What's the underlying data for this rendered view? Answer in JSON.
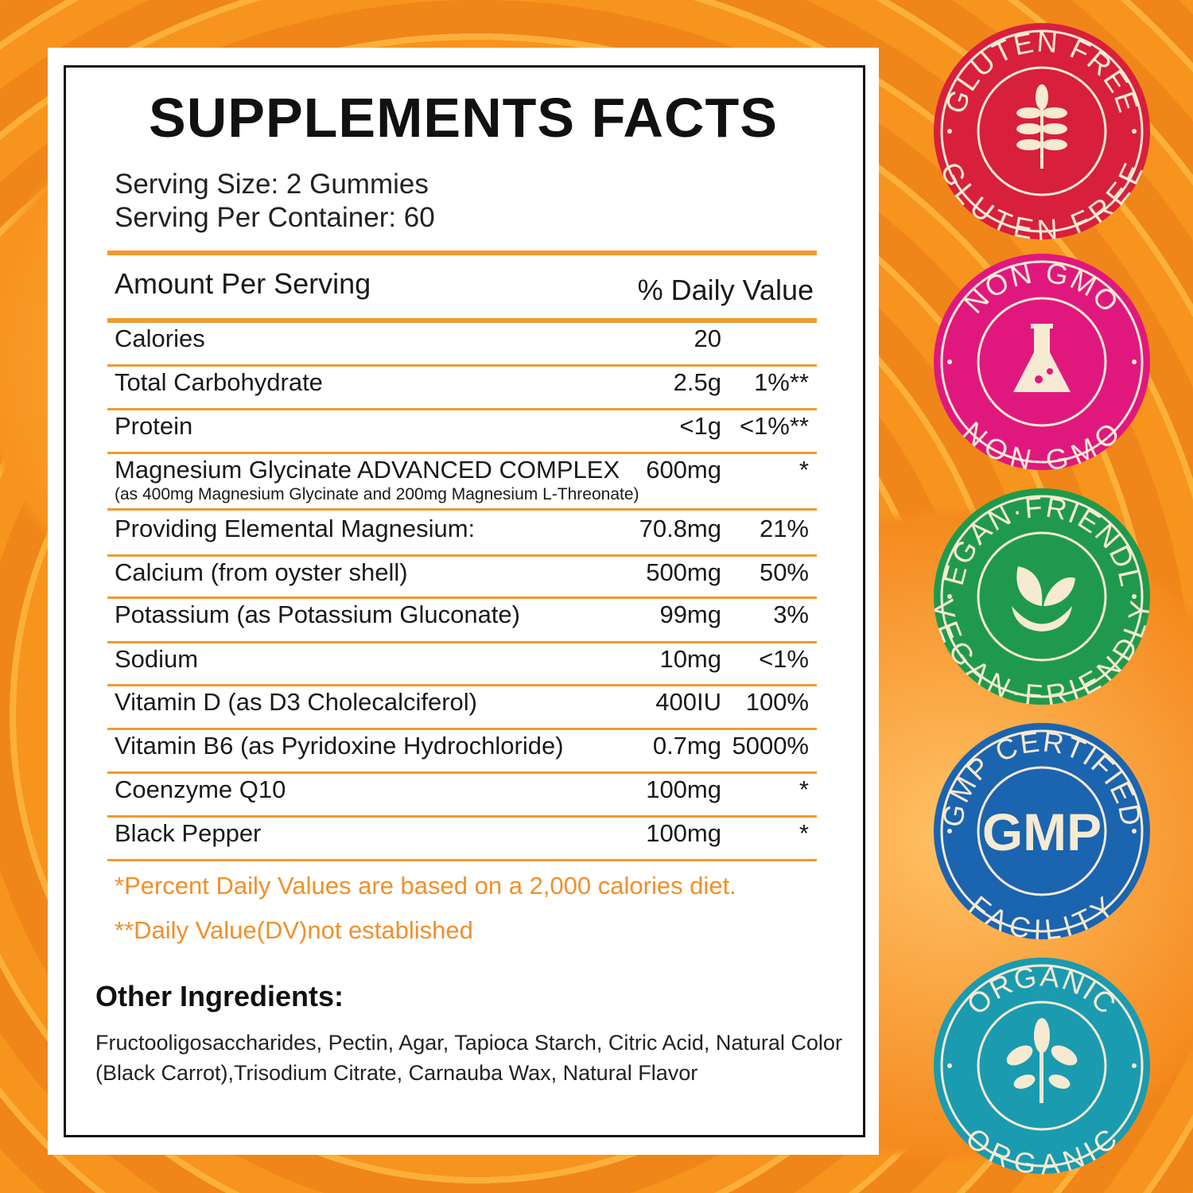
{
  "title": "SUPPLEMENTS FACTS",
  "serving_size": "Serving Size: 2 Gummies",
  "servings_per_container": "Serving Per Container: 60",
  "header": {
    "amount": "Amount Per Serving",
    "dv": "% Daily Value"
  },
  "rows": [
    {
      "name": "Calories",
      "amount": "20",
      "dv": ""
    },
    {
      "name": "Total Carbohydrate",
      "amount": "2.5g",
      "dv": "1%**"
    },
    {
      "name": "Protein",
      "amount": "<1g",
      "dv": "<1%**"
    },
    {
      "name": "Magnesium Glycinate ADVANCED COMPLEX",
      "amount": "600mg",
      "dv": "*",
      "sub": "(as 400mg Magnesium Glycinate and 200mg Magnesium L-Threonate)"
    },
    {
      "name": "Providing Elemental Magnesium:",
      "amount": "70.8mg",
      "dv": "21%"
    },
    {
      "name": "Calcium (from oyster shell)",
      "amount": "500mg",
      "dv": "50%"
    },
    {
      "name": "Potassium (as Potassium Gluconate)",
      "amount": "99mg",
      "dv": "3%"
    },
    {
      "name": "Sodium",
      "amount": "10mg",
      "dv": "<1%"
    },
    {
      "name": "Vitamin D (as D3 Cholecalciferol)",
      "amount": "400IU",
      "dv": "100%"
    },
    {
      "name": "Vitamin B6 (as Pyridoxine Hydrochloride)",
      "amount": "0.7mg",
      "dv": "5000%"
    },
    {
      "name": "Coenzyme Q10",
      "amount": "100mg",
      "dv": "*"
    },
    {
      "name": "Black Pepper",
      "amount": "100mg",
      "dv": "*"
    }
  ],
  "footnotes": [
    "*Percent Daily Values are based on a 2,000 calories diet.",
    "**Daily Value(DV)not established"
  ],
  "other_ingredients": {
    "heading": "Other Ingredients:",
    "text": "Fructooligosaccharides, Pectin, Agar, Tapioca Starch, Citric Acid, Natural Color (Black Carrot),Trisodium Citrate, Carnauba Wax, Natural Flavor"
  },
  "badges": [
    {
      "top": "GLUTEN FREE",
      "bottom": "GLUTEN FREE",
      "icon": "wheat-icon",
      "color": "#d81f3c"
    },
    {
      "top": "NON GMO",
      "bottom": "NON GMO",
      "icon": "flask-icon",
      "color": "#e0187e"
    },
    {
      "top": "VEGAN·FRIENDLY",
      "bottom": "VEGAN·FRIENDLY",
      "icon": "sprout-icon",
      "color": "#1f9a4c"
    },
    {
      "top": "GMP CERTIFIED",
      "bottom": "FACILITY",
      "center": "GMP",
      "icon": "gmp-text",
      "color": "#1b64b0"
    },
    {
      "top": "ORGANIC",
      "bottom": "ORGANIC",
      "icon": "plant-icon",
      "color": "#1a9bb0"
    }
  ]
}
